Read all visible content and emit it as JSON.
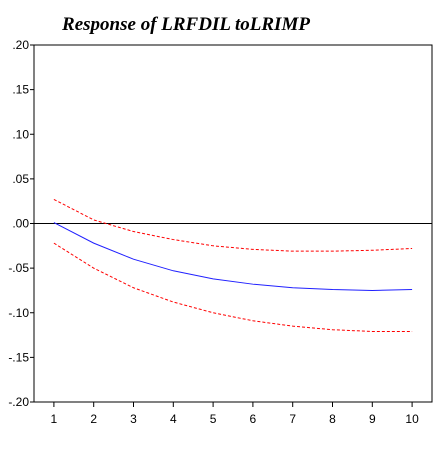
{
  "chart_data": {
    "type": "line",
    "title": "Response of LRFDIL toLRIMP",
    "xlabel": "",
    "ylabel": "",
    "x": [
      1,
      2,
      3,
      4,
      5,
      6,
      7,
      8,
      9,
      10
    ],
    "xlim": [
      0.5,
      10.5
    ],
    "ylim": [
      -0.2,
      0.2
    ],
    "yticks": [
      0.2,
      0.15,
      0.1,
      0.05,
      0.0,
      -0.05,
      -0.1,
      -0.15,
      -0.2
    ],
    "ytick_labels": [
      ".20",
      ".15",
      ".10",
      ".05",
      ".00",
      "-.05",
      "-.10",
      "-.15",
      "-.20"
    ],
    "xtick_labels": [
      "1",
      "2",
      "3",
      "4",
      "5",
      "6",
      "7",
      "8",
      "9",
      "10"
    ],
    "zero_line": true,
    "grid": false,
    "series": [
      {
        "role": "response",
        "color": "#2020ff",
        "style": "solid",
        "values": [
          0.001,
          -0.022,
          -0.04,
          -0.053,
          -0.062,
          -0.068,
          -0.072,
          -0.074,
          -0.075,
          -0.074
        ]
      },
      {
        "role": "upper-band",
        "color": "#ff0000",
        "style": "dashed",
        "values": [
          0.027,
          0.004,
          -0.009,
          -0.018,
          -0.025,
          -0.029,
          -0.031,
          -0.031,
          -0.03,
          -0.028
        ]
      },
      {
        "role": "lower-band",
        "color": "#ff0000",
        "style": "dashed",
        "values": [
          -0.022,
          -0.05,
          -0.072,
          -0.088,
          -0.1,
          -0.109,
          -0.115,
          -0.119,
          -0.121,
          -0.121
        ]
      }
    ]
  }
}
